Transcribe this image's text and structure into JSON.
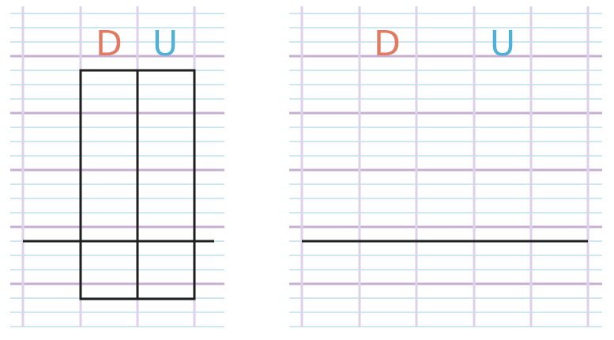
{
  "left_sheet": {
    "col_labels": [
      {
        "text": "D",
        "color": "#e07a63"
      },
      {
        "text": "U",
        "color": "#4fb0d8"
      }
    ]
  },
  "right_sheet": {
    "col_labels": [
      {
        "text": "D",
        "color": "#e07a63"
      },
      {
        "text": "U",
        "color": "#4fb0d8"
      }
    ]
  },
  "colors": {
    "thin_row_line": "#cfe6f3",
    "thick_row_line": "#c7afd3",
    "column_line": "#ddd2ea",
    "ink": "#1f1f1f"
  }
}
